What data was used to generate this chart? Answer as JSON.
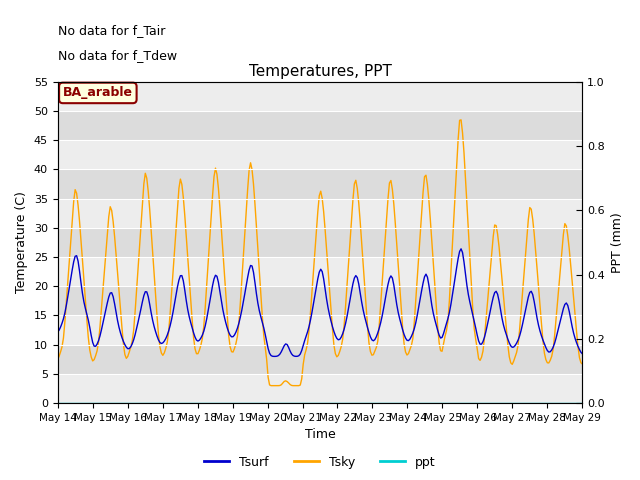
{
  "title": "Temperatures, PPT",
  "xlabel": "Time",
  "ylabel_left": "Temperature (C)",
  "ylabel_right": "PPT (mm)",
  "annotations": [
    "No data for f_Tair",
    "No data for f_Tdew"
  ],
  "station_label": "BA_arable",
  "ylim_left": [
    0,
    55
  ],
  "ylim_right": [
    0.0,
    1.0
  ],
  "yticks_left": [
    0,
    5,
    10,
    15,
    20,
    25,
    30,
    35,
    40,
    45,
    50,
    55
  ],
  "yticks_right": [
    0.0,
    0.2,
    0.4,
    0.6,
    0.8,
    1.0
  ],
  "xtick_days": [
    14,
    15,
    16,
    17,
    18,
    19,
    20,
    21,
    22,
    23,
    24,
    25,
    26,
    27,
    28,
    29
  ],
  "color_tsurf": "#0000cd",
  "color_tsky": "#ffa500",
  "color_ppt": "#00ced1",
  "bg_color": "#dcdcdc",
  "grid_color": "#ffffff",
  "linewidth": 1.0
}
